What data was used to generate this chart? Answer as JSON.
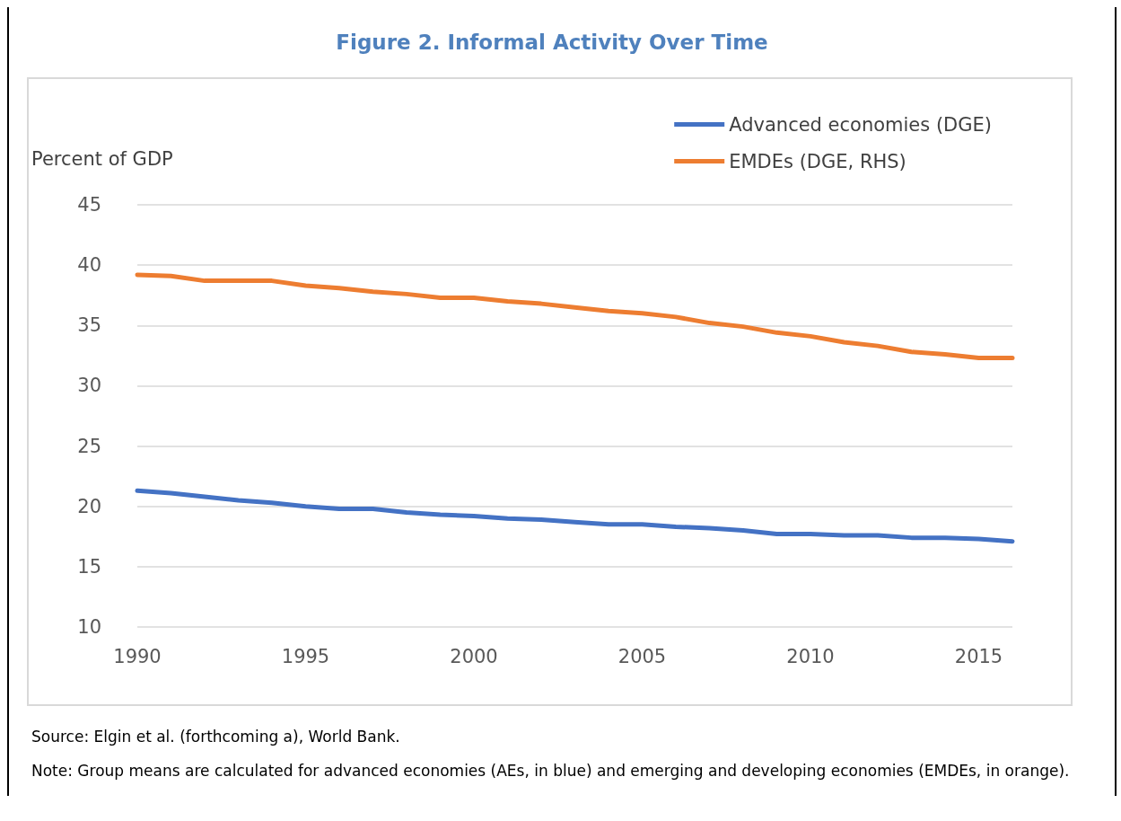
{
  "chart_data": {
    "type": "line",
    "title": "Figure 2. Informal Activity Over Time",
    "ylabel": "Percent of GDP",
    "x": [
      1990,
      1991,
      1992,
      1993,
      1994,
      1995,
      1996,
      1997,
      1998,
      1999,
      2000,
      2001,
      2002,
      2003,
      2004,
      2005,
      2006,
      2007,
      2008,
      2009,
      2010,
      2011,
      2012,
      2013,
      2014,
      2015,
      2016
    ],
    "series": [
      {
        "name": "Advanced economies (DGE)",
        "color": "#4472c4",
        "values": [
          21.3,
          21.1,
          20.8,
          20.5,
          20.3,
          20.0,
          19.8,
          19.8,
          19.5,
          19.3,
          19.2,
          19.0,
          18.9,
          18.7,
          18.5,
          18.5,
          18.3,
          18.2,
          18.0,
          17.7,
          17.7,
          17.6,
          17.6,
          17.4,
          17.4,
          17.3,
          17.1
        ]
      },
      {
        "name": "EMDEs (DGE, RHS)",
        "color": "#ed7d31",
        "values": [
          39.2,
          39.1,
          38.7,
          38.7,
          38.7,
          38.3,
          38.1,
          37.8,
          37.6,
          37.3,
          37.3,
          37.0,
          36.8,
          36.5,
          36.2,
          36.0,
          35.7,
          35.2,
          34.9,
          34.4,
          34.1,
          33.6,
          33.3,
          32.8,
          32.6,
          32.3,
          32.3
        ]
      }
    ],
    "xlim": [
      1990,
      2016
    ],
    "xticks": [
      1990,
      1995,
      2000,
      2005,
      2010,
      2015
    ],
    "ylim": [
      10,
      45
    ],
    "yticks": [
      10,
      15,
      20,
      25,
      30,
      35,
      40,
      45
    ],
    "grid": "y",
    "legend": "top right",
    "marker": "none",
    "line_style": "solid",
    "annotations": [
      "Source: Elgin et al. (forthcoming a), World Bank.",
      "Note: Group means are calculated  for advanced economies (AEs,  in blue) and emerging and developing economies (EMDEs, in orange)."
    ]
  }
}
